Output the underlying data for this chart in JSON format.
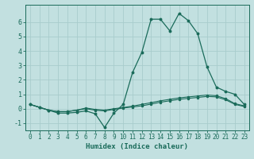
{
  "title": "",
  "xlabel": "Humidex (Indice chaleur)",
  "ylabel": "",
  "background_color": "#c2e0e0",
  "grid_color": "#a8cccc",
  "line_color": "#1a6b5a",
  "xlim": [
    -0.5,
    23.5
  ],
  "ylim": [
    -1.5,
    7.2
  ],
  "yticks": [
    -1,
    0,
    1,
    2,
    3,
    4,
    5,
    6
  ],
  "xticks": [
    0,
    1,
    2,
    3,
    4,
    5,
    6,
    7,
    8,
    9,
    10,
    11,
    12,
    13,
    14,
    15,
    16,
    17,
    18,
    19,
    20,
    21,
    22,
    23
  ],
  "series1_x": [
    0,
    1,
    2,
    3,
    4,
    5,
    6,
    7,
    8,
    9,
    10,
    11,
    12,
    13,
    14,
    15,
    16,
    17,
    18,
    19,
    20,
    21,
    22,
    23
  ],
  "series1_y": [
    0.3,
    0.1,
    -0.1,
    -0.2,
    -0.2,
    -0.1,
    0.0,
    -0.1,
    -0.15,
    -0.05,
    0.05,
    0.12,
    0.2,
    0.32,
    0.45,
    0.55,
    0.65,
    0.72,
    0.78,
    0.85,
    0.82,
    0.62,
    0.3,
    0.15
  ],
  "series2_x": [
    0,
    1,
    2,
    3,
    4,
    5,
    6,
    7,
    8,
    9,
    10,
    11,
    12,
    13,
    14,
    15,
    16,
    17,
    18,
    19,
    20,
    21,
    22,
    23
  ],
  "series2_y": [
    0.3,
    0.1,
    -0.1,
    -0.2,
    -0.2,
    -0.1,
    0.05,
    -0.05,
    -0.1,
    0.0,
    0.08,
    0.18,
    0.3,
    0.42,
    0.55,
    0.65,
    0.75,
    0.82,
    0.88,
    0.95,
    0.9,
    0.7,
    0.35,
    0.2
  ],
  "series3_x": [
    0,
    1,
    2,
    3,
    4,
    5,
    6,
    7,
    8,
    9,
    10,
    11,
    12,
    13,
    14,
    15,
    16,
    17,
    18,
    19,
    20,
    21,
    22,
    23
  ],
  "series3_y": [
    0.3,
    0.1,
    -0.1,
    -0.3,
    -0.3,
    -0.25,
    -0.15,
    -0.35,
    -1.3,
    -0.3,
    0.3,
    2.5,
    3.9,
    6.2,
    6.2,
    5.4,
    6.6,
    6.1,
    5.2,
    2.9,
    1.5,
    1.2,
    1.0,
    0.3
  ]
}
